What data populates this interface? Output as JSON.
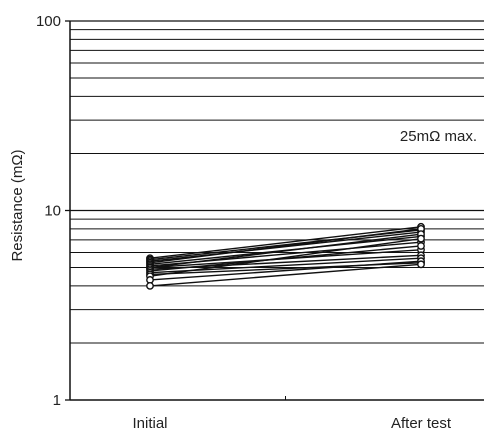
{
  "chart_data": {
    "type": "line",
    "title": "",
    "xlabel": "",
    "ylabel": "Resistance (mΩ)",
    "yscale": "log",
    "ylim": [
      1,
      100
    ],
    "y_ticks": [
      {
        "value": 1,
        "label": "1"
      },
      {
        "value": 10,
        "label": "10"
      },
      {
        "value": 100,
        "label": "100"
      }
    ],
    "categories": [
      "Initial",
      "After test"
    ],
    "grid": true,
    "annotation": {
      "text": "25mΩ max.",
      "value": 25
    },
    "series": [
      {
        "values": [
          5.6,
          8.2
        ]
      },
      {
        "values": [
          5.5,
          7.9
        ]
      },
      {
        "values": [
          5.4,
          7.7
        ]
      },
      {
        "values": [
          5.3,
          8.0
        ]
      },
      {
        "values": [
          5.2,
          7.3
        ]
      },
      {
        "values": [
          5.1,
          6.8
        ]
      },
      {
        "values": [
          5.0,
          6.2
        ]
      },
      {
        "values": [
          5.0,
          7.5
        ]
      },
      {
        "values": [
          4.9,
          5.8
        ]
      },
      {
        "values": [
          4.8,
          6.5
        ]
      },
      {
        "values": [
          4.7,
          5.6
        ]
      },
      {
        "values": [
          4.6,
          5.3
        ]
      },
      {
        "values": [
          4.5,
          7.1
        ]
      },
      {
        "values": [
          4.3,
          5.4
        ]
      },
      {
        "values": [
          4.0,
          5.2
        ]
      }
    ],
    "colors": {
      "line": "#111111",
      "grid": "#111111",
      "marker_fill": "#ffffff",
      "text": "#222222"
    }
  }
}
